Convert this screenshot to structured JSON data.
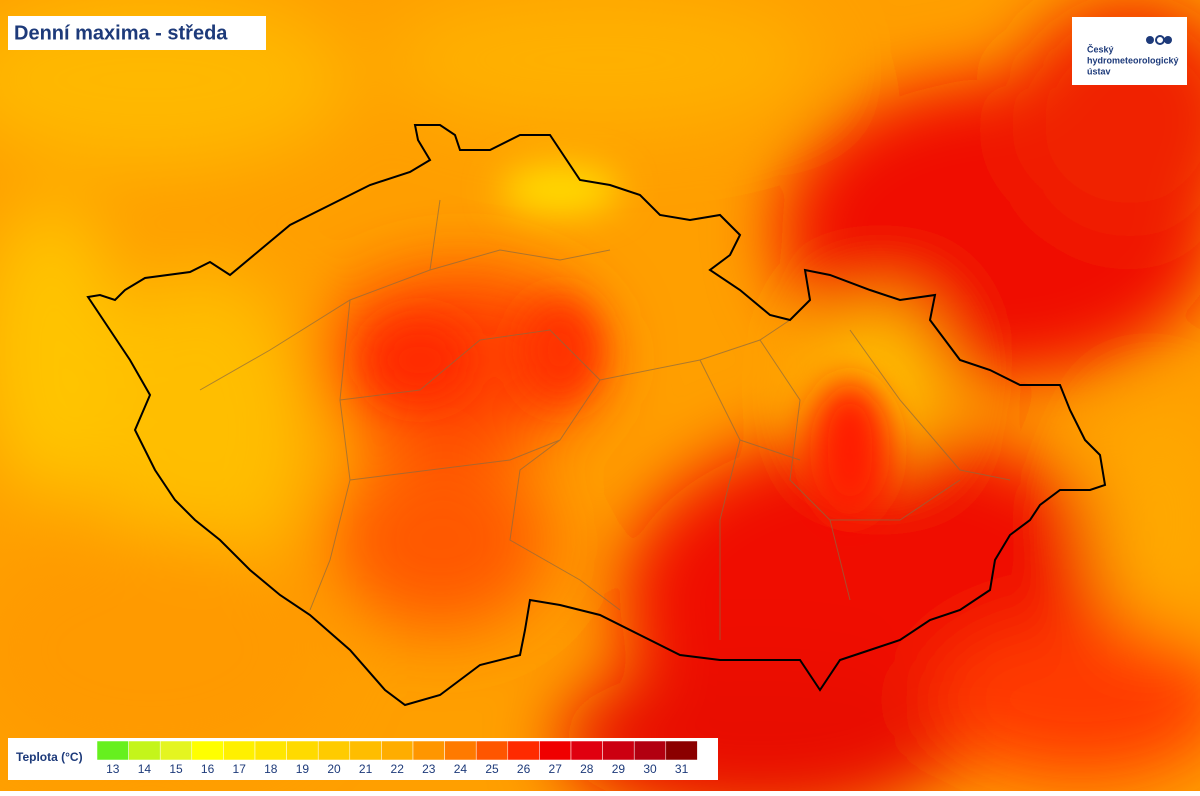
{
  "header": {
    "title": "Denní maxima - středa"
  },
  "logo": {
    "lines": [
      "Český",
      "hydrometeorologický",
      "ústav"
    ]
  },
  "legend": {
    "label": "Teplota (°C)",
    "items": [
      {
        "value": 13,
        "color": "#66f01e"
      },
      {
        "value": 14,
        "color": "#c4f51a"
      },
      {
        "value": 15,
        "color": "#e4f520"
      },
      {
        "value": 16,
        "color": "#ffff00"
      },
      {
        "value": 17,
        "color": "#fff000"
      },
      {
        "value": 18,
        "color": "#ffe600"
      },
      {
        "value": 19,
        "color": "#ffda00"
      },
      {
        "value": 20,
        "color": "#ffcb00"
      },
      {
        "value": 21,
        "color": "#ffbd00"
      },
      {
        "value": 22,
        "color": "#ffad00"
      },
      {
        "value": 23,
        "color": "#ff9600"
      },
      {
        "value": 24,
        "color": "#ff7a00"
      },
      {
        "value": 25,
        "color": "#ff5600"
      },
      {
        "value": 26,
        "color": "#ff2a00"
      },
      {
        "value": 27,
        "color": "#f00000"
      },
      {
        "value": 28,
        "color": "#e0000f"
      },
      {
        "value": 29,
        "color": "#cc0010"
      },
      {
        "value": 30,
        "color": "#b20010"
      },
      {
        "value": 31,
        "color": "#8b0000"
      }
    ]
  }
}
